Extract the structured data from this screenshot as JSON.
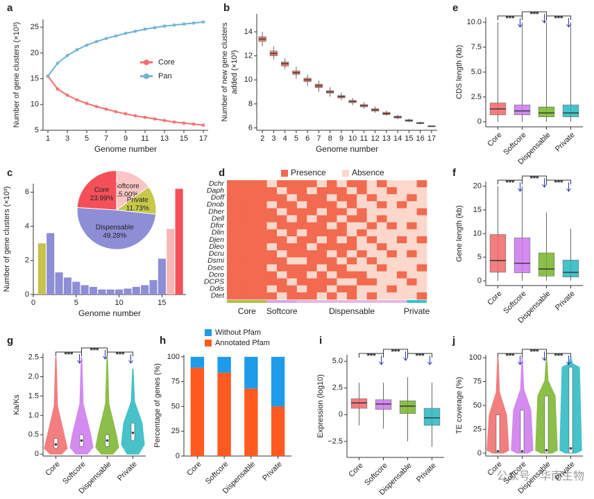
{
  "chart_data": [
    {
      "panel": "a",
      "type": "line",
      "xlabel": "Genome number",
      "ylabel": "Number of gene clusters (×10³)",
      "x": [
        1,
        2,
        3,
        4,
        5,
        6,
        7,
        8,
        9,
        10,
        11,
        12,
        13,
        14,
        15,
        16,
        17
      ],
      "series": [
        {
          "name": "Core",
          "color": "#f26d6d",
          "values": [
            15.5,
            13.0,
            11.8,
            10.9,
            10.2,
            9.6,
            9.1,
            8.6,
            8.2,
            7.8,
            7.5,
            7.2,
            6.9,
            6.6,
            6.4,
            6.2,
            6.0
          ]
        },
        {
          "name": "Pan",
          "color": "#6fb1d6",
          "values": [
            15.5,
            18.0,
            19.5,
            20.6,
            21.5,
            22.2,
            22.8,
            23.3,
            23.8,
            24.2,
            24.6,
            24.9,
            25.2,
            25.4,
            25.6,
            25.8,
            26.0
          ]
        }
      ],
      "xlim": [
        0.5,
        17.5
      ],
      "xticks": [
        1,
        3,
        5,
        7,
        9,
        11,
        13,
        15,
        17
      ],
      "ylim": [
        5,
        26.5
      ],
      "yticks": [
        5,
        10,
        15,
        20,
        25
      ]
    },
    {
      "panel": "b",
      "type": "box",
      "xlabel": "Genome number",
      "ylabel": [
        "Number of new gene clusters",
        "added (×10³)"
      ],
      "color": "#e8695a",
      "categories": [
        2,
        3,
        4,
        5,
        6,
        7,
        8,
        9,
        10,
        11,
        12,
        13,
        14,
        15,
        16,
        17
      ],
      "median": [
        13.4,
        12.2,
        11.35,
        10.6,
        10.0,
        9.5,
        9.0,
        8.6,
        8.2,
        7.85,
        7.5,
        7.2,
        6.9,
        6.6,
        6.4,
        6.15
      ],
      "q1": [
        13.2,
        12.0,
        11.15,
        10.45,
        9.85,
        9.35,
        8.9,
        8.5,
        8.1,
        7.75,
        7.4,
        7.1,
        6.82,
        6.55,
        6.36,
        6.15
      ],
      "q3": [
        13.6,
        12.4,
        11.5,
        10.75,
        10.15,
        9.65,
        9.1,
        8.7,
        8.3,
        7.95,
        7.6,
        7.3,
        6.98,
        6.68,
        6.45,
        6.15
      ],
      "whislo": [
        12.8,
        11.7,
        10.9,
        10.1,
        9.5,
        9.0,
        8.6,
        8.3,
        7.9,
        7.6,
        7.25,
        7.0,
        6.72,
        6.5,
        6.3,
        6.15
      ],
      "whishi": [
        14.0,
        12.8,
        11.8,
        11.1,
        10.45,
        9.95,
        9.4,
        8.95,
        8.5,
        8.15,
        7.8,
        7.45,
        7.1,
        6.78,
        6.52,
        6.15
      ],
      "ylim": [
        5.8,
        15.5
      ],
      "yticks": [
        6,
        8,
        10,
        12,
        14
      ]
    },
    {
      "panel": "c",
      "type": "bar",
      "xlabel": "Genome number",
      "ylabel": "Number of gene clusters (×10³)",
      "x": [
        1,
        2,
        3,
        4,
        5,
        6,
        7,
        8,
        9,
        10,
        11,
        12,
        13,
        14,
        15,
        16,
        17
      ],
      "values": [
        3.0,
        3.6,
        1.3,
        1.0,
        0.75,
        0.55,
        0.45,
        0.3,
        0.3,
        0.3,
        0.35,
        0.45,
        0.55,
        0.85,
        2.1,
        3.85,
        6.2
      ],
      "colors": [
        "#c6c24a",
        "#8e8ed6",
        "#8e8ed6",
        "#8e8ed6",
        "#8e8ed6",
        "#8e8ed6",
        "#8e8ed6",
        "#8e8ed6",
        "#8e8ed6",
        "#8e8ed6",
        "#8e8ed6",
        "#8e8ed6",
        "#8e8ed6",
        "#8e8ed6",
        "#8e8ed6",
        "#f7b7b7",
        "#f5505a"
      ],
      "xlim": [
        0,
        17.8
      ],
      "xticks": [
        0,
        5,
        10,
        15
      ],
      "ylim": [
        0,
        6.5
      ],
      "yticks": [
        0,
        2,
        4,
        6
      ],
      "inset": {
        "type": "pie",
        "categories": [
          "Softcore",
          "Private",
          "Dispensable",
          "Core"
        ],
        "values": [
          15.0,
          11.73,
          49.28,
          23.99
        ],
        "value_labels": [
          "15.00%",
          "11.73%",
          "49.28%",
          "23.99%"
        ],
        "colors": [
          "#f9c5c5",
          "#c8c84a",
          "#8e8ed6",
          "#f5505a"
        ]
      }
    },
    {
      "panel": "d",
      "type": "heatmap",
      "legend": [
        "Presence",
        "Absence"
      ],
      "colors": [
        "#f26a4f",
        "#fcd8cc"
      ],
      "rows": [
        "Dchr",
        "Daph",
        "Doff",
        "Dnob",
        "Dher",
        "Dell",
        "Dfor",
        "Dlin",
        "Djen",
        "Dleo",
        "Dcru",
        "Dsmi",
        "Dsec",
        "Dcro",
        "DCPS",
        "Ddis",
        "Dtet"
      ],
      "groups": [
        "Core",
        "Softcore",
        "Dispensable",
        "Private"
      ],
      "group_colors": [
        "#a9c23f",
        "#d6a6e6",
        "#e4b7e6",
        "#2ec4d0"
      ],
      "matrix": [
        [
          1,
          1,
          1,
          1,
          0,
          1,
          1,
          1,
          1,
          0,
          1,
          0,
          1,
          1,
          0,
          1,
          0,
          0,
          0,
          1
        ],
        [
          1,
          1,
          1,
          1,
          1,
          0,
          1,
          1,
          0,
          1,
          1,
          1,
          0,
          1,
          0,
          0,
          1,
          0,
          0,
          0
        ],
        [
          1,
          1,
          1,
          1,
          1,
          1,
          0,
          1,
          1,
          1,
          0,
          1,
          1,
          0,
          1,
          0,
          0,
          0,
          1,
          0
        ],
        [
          1,
          1,
          1,
          1,
          0,
          1,
          1,
          0,
          1,
          1,
          1,
          0,
          1,
          0,
          0,
          1,
          0,
          1,
          0,
          0
        ],
        [
          1,
          1,
          1,
          1,
          1,
          0,
          1,
          1,
          1,
          0,
          1,
          1,
          0,
          1,
          0,
          0,
          0,
          0,
          0,
          1
        ],
        [
          1,
          1,
          1,
          1,
          1,
          1,
          0,
          1,
          0,
          1,
          1,
          0,
          1,
          1,
          0,
          1,
          0,
          0,
          0,
          0
        ],
        [
          1,
          1,
          1,
          1,
          0,
          1,
          1,
          1,
          1,
          1,
          0,
          1,
          0,
          0,
          1,
          0,
          1,
          0,
          1,
          0
        ],
        [
          1,
          1,
          1,
          1,
          1,
          0,
          1,
          0,
          1,
          1,
          1,
          1,
          0,
          1,
          0,
          0,
          0,
          0,
          0,
          0
        ],
        [
          1,
          1,
          1,
          1,
          1,
          1,
          0,
          1,
          1,
          0,
          1,
          0,
          1,
          0,
          1,
          0,
          0,
          1,
          0,
          1
        ],
        [
          1,
          1,
          1,
          1,
          0,
          1,
          1,
          1,
          0,
          1,
          1,
          1,
          1,
          0,
          0,
          1,
          0,
          0,
          0,
          0
        ],
        [
          1,
          1,
          1,
          1,
          1,
          0,
          1,
          1,
          1,
          1,
          0,
          1,
          0,
          1,
          0,
          0,
          1,
          0,
          1,
          0
        ],
        [
          1,
          1,
          1,
          1,
          1,
          1,
          0,
          0,
          1,
          1,
          1,
          0,
          1,
          0,
          1,
          0,
          0,
          0,
          0,
          0
        ],
        [
          1,
          1,
          1,
          1,
          0,
          1,
          1,
          1,
          1,
          0,
          1,
          1,
          0,
          0,
          0,
          1,
          0,
          0,
          0,
          1
        ],
        [
          1,
          1,
          1,
          1,
          1,
          0,
          1,
          1,
          0,
          1,
          0,
          1,
          1,
          1,
          0,
          0,
          0,
          1,
          0,
          0
        ],
        [
          1,
          1,
          1,
          1,
          1,
          1,
          0,
          1,
          1,
          1,
          1,
          0,
          0,
          1,
          1,
          0,
          0,
          0,
          1,
          0
        ],
        [
          1,
          1,
          1,
          1,
          0,
          1,
          1,
          0,
          1,
          1,
          0,
          1,
          1,
          0,
          0,
          0,
          1,
          0,
          0,
          0
        ],
        [
          1,
          1,
          1,
          1,
          1,
          0,
          1,
          1,
          1,
          0,
          1,
          0,
          1,
          0,
          1,
          0,
          0,
          0,
          0,
          1
        ]
      ]
    },
    {
      "panel": "e",
      "type": "box",
      "ylabel": "CDS length (kb)",
      "rotate_xlabels": true,
      "annotations": [
        "***",
        "***",
        "***"
      ],
      "categories": [
        "Core",
        "Softcore",
        "Dispensable",
        "Private"
      ],
      "colors": [
        "#f0686a",
        "#cc77ee",
        "#77b52a",
        "#28b8c0"
      ],
      "median": [
        1.3,
        1.1,
        0.9,
        0.9
      ],
      "q1": [
        0.7,
        0.7,
        0.5,
        0.5
      ],
      "q3": [
        1.9,
        1.7,
        1.5,
        1.7
      ],
      "whislo": [
        0,
        0,
        0,
        0
      ],
      "whishi": [
        10,
        10,
        10,
        10
      ],
      "ylim": [
        -0.5,
        10.5
      ],
      "yticks": [
        {
          "value": 0,
          "label": "0"
        },
        {
          "value": 2.5,
          "label": "2.5"
        },
        {
          "value": 5,
          "label": "5.0"
        },
        {
          "value": 7.5,
          "label": "7.5"
        },
        {
          "value": 10,
          "label": "10.0"
        }
      ]
    },
    {
      "panel": "f",
      "type": "box",
      "ylabel": "Gene length (kb)",
      "rotate_xlabels": true,
      "annotations": [
        "***",
        "***",
        "***"
      ],
      "categories": [
        "Core",
        "Softcore",
        "Dispensable",
        "Private"
      ],
      "colors": [
        "#f0686a",
        "#cc77ee",
        "#77b52a",
        "#28b8c0"
      ],
      "median": [
        4.3,
        3.7,
        2.5,
        1.8
      ],
      "q1": [
        1.8,
        1.7,
        1.0,
        0.8
      ],
      "q3": [
        9.8,
        9.1,
        5.9,
        4.4
      ],
      "whislo": [
        0,
        0,
        0,
        0
      ],
      "whishi": [
        20,
        20,
        14.5,
        11
      ],
      "ylim": [
        -1,
        21
      ],
      "yticks": [
        0,
        5,
        10,
        15,
        20
      ]
    },
    {
      "panel": "g",
      "type": "violin",
      "ylabel": "Ka/Ks",
      "rotate_xlabels": true,
      "annotations": [
        "***",
        "***",
        "***"
      ],
      "categories": [
        "Core",
        "Softcore",
        "Dispensable",
        "Private"
      ],
      "colors": [
        "#f0686a",
        "#cc77ee",
        "#77b52a",
        "#28b8c0"
      ],
      "min": [
        0,
        0,
        0,
        0
      ],
      "q1": [
        0.15,
        0.2,
        0.2,
        0.35
      ],
      "median": [
        0.25,
        0.35,
        0.35,
        0.55
      ],
      "q3": [
        0.4,
        0.5,
        0.5,
        0.8
      ],
      "max": [
        2.5,
        2.5,
        2.5,
        2.2
      ],
      "ylim": [
        -0.05,
        2.6
      ],
      "yticks": [
        0,
        {
          "value": 0.5,
          "label": "0.5"
        },
        {
          "value": 1,
          "label": "1.0"
        },
        {
          "value": 1.5,
          "label": "1.5"
        },
        {
          "value": 2,
          "label": "2.0"
        },
        {
          "value": 2.5,
          "label": "2.5"
        }
      ]
    },
    {
      "panel": "h",
      "type": "stacked_bar",
      "ylabel": "Percentage of genes (%)",
      "rotate_xlabels": true,
      "categories": [
        "Core",
        "Softcore",
        "Dispensable",
        "Private"
      ],
      "series": [
        {
          "name": "Without Pfam",
          "color": "#1e9be9",
          "values": [
            11,
            16,
            32,
            50
          ]
        },
        {
          "name": "Annotated Pfam",
          "color": "#ff5a1f",
          "values": [
            89,
            84,
            68,
            50
          ]
        }
      ],
      "ylim": [
        0,
        102
      ],
      "yticks": [
        0,
        25,
        50,
        75,
        100
      ]
    },
    {
      "panel": "i",
      "type": "box",
      "ylabel": "Expression (log10)",
      "rotate_xlabels": true,
      "annotations": [
        "***",
        "***",
        "***"
      ],
      "categories": [
        "Core",
        "Softcore",
        "Dispensable",
        "Private"
      ],
      "colors": [
        "#f0686a",
        "#cc77ee",
        "#77b52a",
        "#28b8c0"
      ],
      "median": [
        1.1,
        1.0,
        0.8,
        -0.3
      ],
      "q1": [
        0.6,
        0.5,
        0.1,
        -1.0
      ],
      "q3": [
        1.5,
        1.4,
        1.3,
        0.6
      ],
      "whislo": [
        -1,
        -1.3,
        -2.5,
        -3
      ],
      "whishi": [
        3,
        3,
        3.5,
        3
      ],
      "ylim": [
        -4,
        5.6
      ],
      "yticks": [
        {
          "value": -2.5,
          "label": "−2.5"
        },
        0,
        {
          "value": 2.5,
          "label": "2.5"
        },
        {
          "value": 5,
          "label": "5.0"
        }
      ]
    },
    {
      "panel": "j",
      "type": "violin",
      "ylabel": "TE coverage (%)",
      "rotate_xlabels": true,
      "annotations": [
        "***",
        "***",
        "***"
      ],
      "categories": [
        "Core",
        "Softcore",
        "Dispensable",
        "Private"
      ],
      "colors": [
        "#f0686a",
        "#cc77ee",
        "#77b52a",
        "#28b8c0"
      ],
      "min": [
        0,
        0,
        0,
        0
      ],
      "q1": [
        0,
        0,
        0,
        0
      ],
      "median": [
        2,
        2,
        3,
        5
      ],
      "q3": [
        40,
        45,
        60,
        90
      ],
      "max": [
        100,
        100,
        100,
        100
      ],
      "ylim": [
        -3,
        103
      ],
      "yticks": [
        0,
        25,
        50,
        75,
        100
      ]
    }
  ],
  "watermark": "公众号 · 华南生物"
}
